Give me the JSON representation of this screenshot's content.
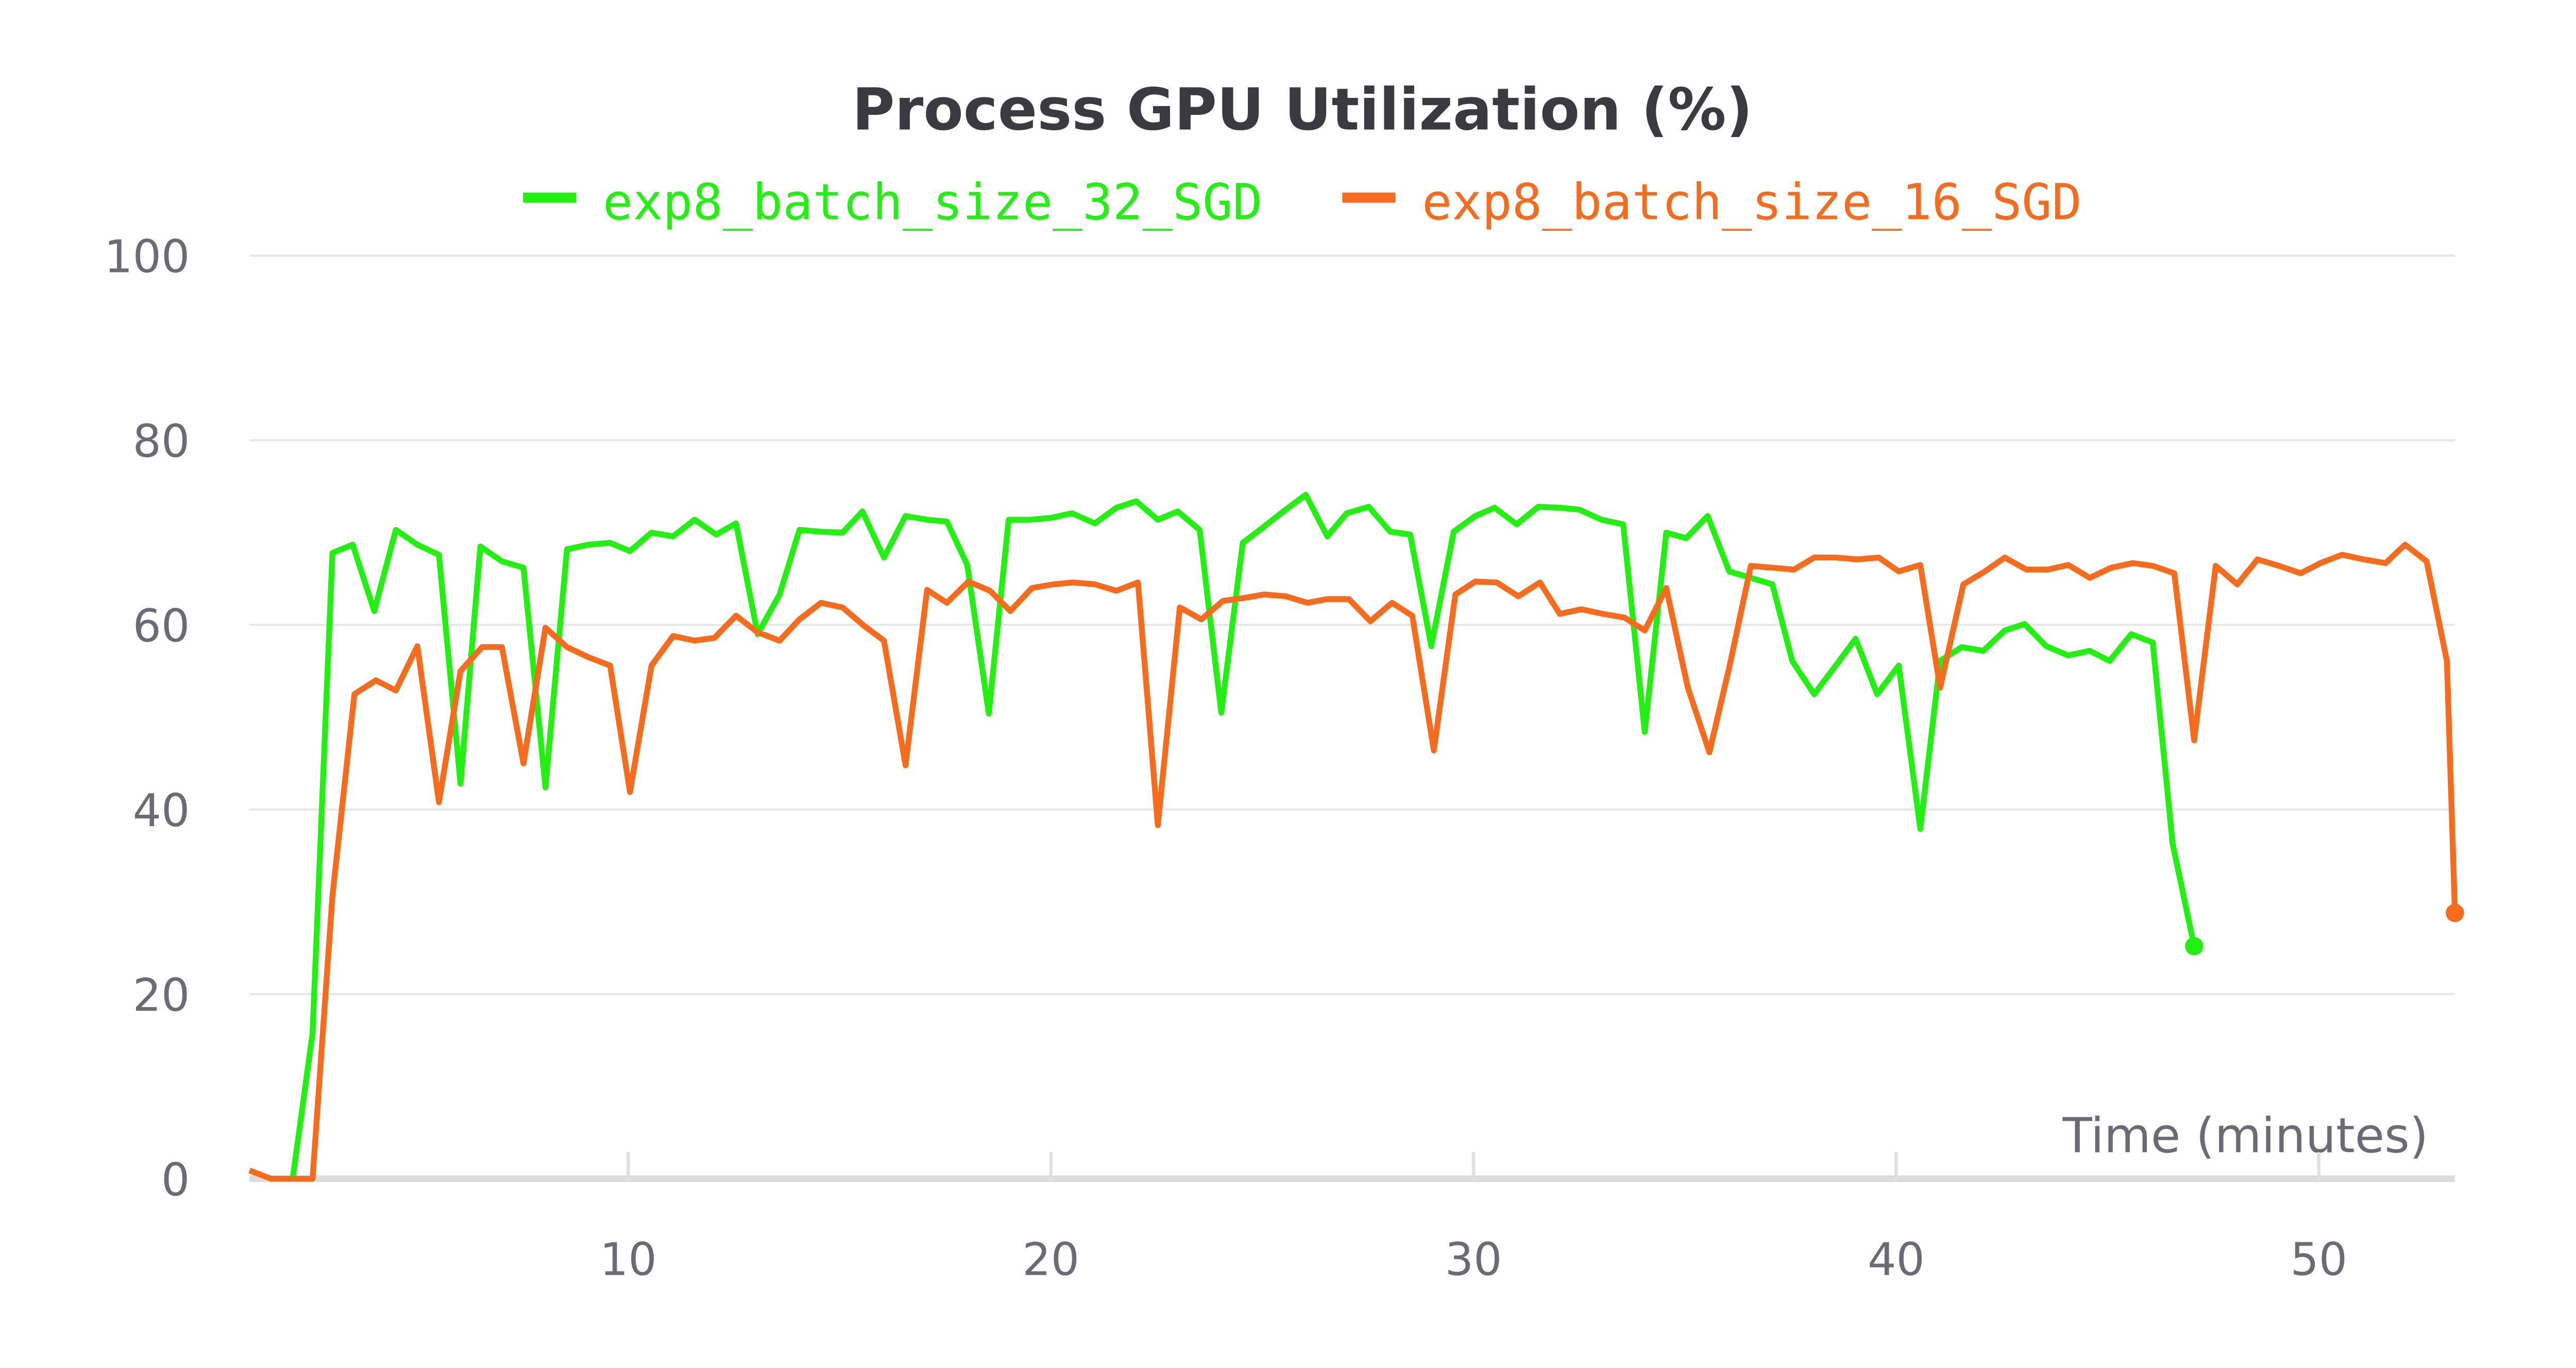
{
  "chart_data": {
    "type": "line",
    "title": "Process GPU Utilization (%)",
    "x_label": "Time (minutes)",
    "xlim": [
      1.04,
      53.22
    ],
    "xticks": [
      10,
      20,
      30,
      40,
      50
    ],
    "ylim": [
      0,
      100
    ],
    "yticks": [
      0,
      20,
      40,
      60,
      80,
      100
    ],
    "grid": true,
    "series": [
      {
        "name": "exp8_batch_size_32_SGD",
        "color": "#22f010",
        "x": [
          2.06,
          2.53,
          3.0,
          3.48,
          3.99,
          4.5,
          5.01,
          5.52,
          6.03,
          6.5,
          7.01,
          7.52,
          8.04,
          8.55,
          9.06,
          9.57,
          10.04,
          10.55,
          11.06,
          11.57,
          12.08,
          12.55,
          13.06,
          13.58,
          14.05,
          14.56,
          15.07,
          15.54,
          16.05,
          16.56,
          17.07,
          17.54,
          18.02,
          18.53,
          19.0,
          19.5,
          20.0,
          20.5,
          21.04,
          21.55,
          22.02,
          22.53,
          23.0,
          23.52,
          24.03,
          24.54,
          25.0,
          25.5,
          26.03,
          26.54,
          27.0,
          27.52,
          28.03,
          28.5,
          29.0,
          29.53,
          30.04,
          30.5,
          31.02,
          31.53,
          32.04,
          32.5,
          33.03,
          33.54,
          34.05,
          34.56,
          35.03,
          35.54,
          36.05,
          36.56,
          37.07,
          37.54,
          38.06,
          38.57,
          39.04,
          39.55,
          40.06,
          40.57,
          41.04,
          41.55,
          42.06,
          42.57,
          43.04,
          43.55,
          44.07,
          44.58,
          45.05,
          45.56,
          46.07,
          46.54,
          47.05
        ],
        "values": [
          0,
          15.8,
          67.8,
          68.7,
          61.5,
          70.3,
          68.7,
          67.6,
          42.8,
          68.5,
          66.9,
          66.2,
          42.4,
          68.2,
          68.7,
          68.9,
          68.0,
          70.0,
          69.6,
          71.4,
          69.8,
          71.0,
          59.0,
          63.3,
          70.3,
          70.1,
          70.0,
          72.3,
          67.3,
          71.8,
          71.4,
          71.2,
          66.5,
          50.4,
          71.4,
          71.4,
          71.6,
          72.1,
          71.0,
          72.7,
          73.4,
          71.4,
          72.3,
          70.3,
          50.5,
          68.9,
          70.5,
          72.3,
          74.1,
          69.6,
          72.1,
          72.8,
          70.1,
          69.8,
          57.7,
          70.1,
          71.8,
          72.7,
          70.9,
          72.8,
          72.7,
          72.5,
          71.4,
          70.9,
          48.4,
          70.0,
          69.4,
          71.8,
          65.8,
          65.1,
          64.4,
          56.1,
          52.5,
          55.6,
          58.5,
          52.5,
          55.6,
          37.9,
          56.1,
          57.6,
          57.2,
          59.4,
          60.1,
          57.7,
          56.7,
          57.2,
          56.1,
          59.0,
          58.1,
          36.3,
          25.2
        ]
      },
      {
        "name": "exp8_batch_size_16_SGD",
        "color": "#f76b1c",
        "x": [
          1.04,
          1.55,
          2.53,
          3.0,
          3.52,
          4.03,
          4.5,
          5.01,
          5.52,
          6.03,
          6.54,
          7.01,
          7.52,
          8.04,
          8.55,
          9.06,
          9.57,
          10.04,
          10.55,
          11.06,
          11.57,
          12.04,
          12.55,
          13.06,
          13.58,
          14.05,
          14.56,
          15.07,
          15.58,
          16.05,
          16.56,
          17.07,
          17.54,
          18.05,
          18.56,
          19.04,
          19.55,
          20.06,
          20.53,
          21.04,
          21.55,
          22.06,
          22.53,
          23.05,
          23.56,
          24.07,
          24.54,
          25.05,
          25.56,
          26.07,
          26.54,
          27.05,
          27.56,
          28.07,
          28.55,
          29.06,
          29.57,
          30.04,
          30.55,
          31.06,
          31.57,
          32.04,
          32.55,
          33.06,
          33.57,
          34.05,
          34.56,
          35.07,
          35.58,
          36.05,
          36.56,
          37.07,
          37.58,
          38.06,
          38.57,
          39.08,
          39.59,
          40.06,
          40.57,
          41.04,
          41.59,
          42.1,
          42.57,
          43.08,
          43.59,
          44.07,
          44.58,
          45.09,
          45.6,
          46.07,
          46.58,
          47.05,
          47.56,
          48.07,
          48.55,
          49.06,
          49.57,
          50.04,
          50.55,
          51.06,
          51.58,
          52.04,
          52.55,
          53.03,
          53.22
        ],
        "values": [
          0.9,
          0,
          0,
          30.6,
          52.5,
          54.0,
          52.9,
          57.7,
          40.8,
          55.0,
          57.6,
          57.6,
          45.0,
          59.7,
          57.6,
          56.5,
          55.6,
          41.9,
          55.6,
          58.8,
          58.3,
          58.6,
          61.0,
          59.2,
          58.3,
          60.6,
          62.4,
          61.9,
          59.9,
          58.3,
          44.8,
          63.8,
          62.4,
          64.7,
          63.7,
          61.5,
          64.0,
          64.4,
          64.6,
          64.4,
          63.7,
          64.6,
          38.3,
          61.9,
          60.6,
          62.6,
          62.9,
          63.3,
          63.1,
          62.4,
          62.8,
          62.8,
          60.4,
          62.4,
          61.0,
          46.4,
          63.3,
          64.7,
          64.6,
          63.1,
          64.6,
          61.2,
          61.7,
          61.2,
          60.8,
          59.4,
          64.0,
          53.2,
          46.2,
          55.4,
          66.4,
          66.2,
          66.0,
          67.3,
          67.3,
          67.1,
          67.3,
          65.8,
          66.5,
          53.2,
          64.4,
          65.8,
          67.3,
          66.0,
          66.0,
          66.5,
          65.1,
          66.2,
          66.7,
          66.4,
          65.6,
          47.5,
          66.4,
          64.4,
          67.1,
          66.4,
          65.6,
          66.7,
          67.6,
          67.1,
          66.7,
          68.7,
          66.9,
          56.1,
          28.8
        ]
      }
    ]
  }
}
